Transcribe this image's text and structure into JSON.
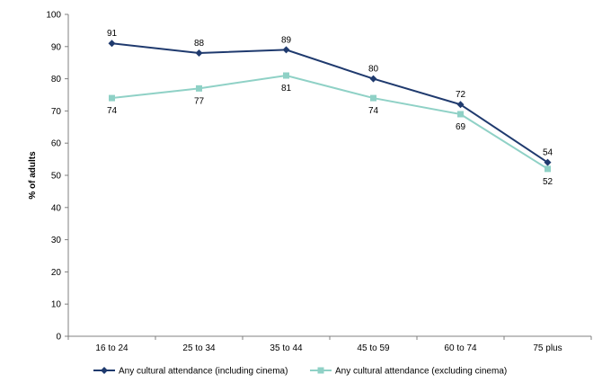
{
  "chart_data": {
    "type": "line",
    "categories": [
      "16 to 24",
      "25 to 34",
      "35 to 44",
      "45 to 59",
      "60 to 74",
      "75 plus"
    ],
    "series": [
      {
        "name": "Any cultural attendance (including cinema)",
        "values": [
          91,
          88,
          89,
          80,
          72,
          54
        ],
        "color": "#1f3a6e",
        "marker": "diamond"
      },
      {
        "name": "Any cultural attendance (excluding cinema)",
        "values": [
          74,
          77,
          81,
          74,
          69,
          52
        ],
        "color": "#8fd1c6",
        "marker": "square"
      }
    ],
    "ylabel": "% of adults",
    "xlabel": "",
    "ylim": [
      0,
      100
    ],
    "yticks": [
      0,
      10,
      20,
      30,
      40,
      50,
      60,
      70,
      80,
      90,
      100
    ],
    "grid": false,
    "legend": "bottom"
  }
}
